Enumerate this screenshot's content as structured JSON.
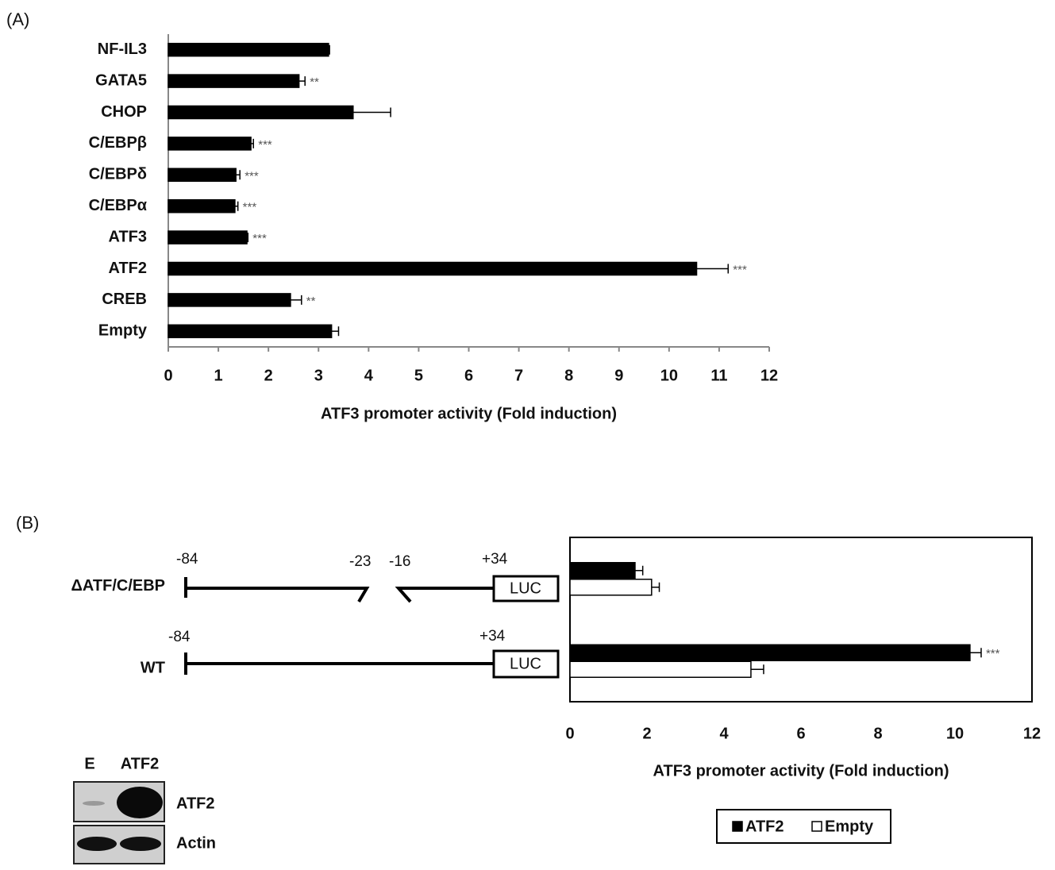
{
  "panel_labels": [
    "(A)",
    "(B)"
  ],
  "chart_data": [
    {
      "type": "bar",
      "orientation": "horizontal",
      "categories": [
        "NF-IL3",
        "GATA5",
        "CHOP",
        "C/EBPβ",
        "C/EBPδ",
        "C/EBPα",
        "ATF3",
        "ATF2",
        "CREB",
        "Empty"
      ],
      "series": [
        {
          "name": "ATF2",
          "color": "#000000",
          "values": [
            3.2,
            2.61,
            3.69,
            1.65,
            1.35,
            1.33,
            1.57,
            10.55,
            2.44,
            3.26
          ],
          "errors": [
            0.02,
            0.12,
            0.75,
            0.05,
            0.08,
            0.06,
            0.02,
            0.63,
            0.22,
            0.14
          ],
          "significance": [
            null,
            "**",
            null,
            "***",
            "***",
            "***",
            "***",
            "***",
            "**",
            null
          ]
        }
      ],
      "xlabel": "ATF3 promoter activity (Fold induction)",
      "xlim": [
        0,
        12
      ],
      "xticks": [
        0,
        1,
        2,
        3,
        4,
        5,
        6,
        7,
        8,
        9,
        10,
        11,
        12
      ],
      "frame": false,
      "legend": null
    },
    {
      "type": "bar",
      "orientation": "horizontal",
      "categories": [
        "ΔATF/C/EBP",
        "WT"
      ],
      "series": [
        {
          "name": "ATF2",
          "color": "#000000",
          "values": [
            1.69,
            10.39
          ],
          "errors": [
            0.2,
            0.29
          ],
          "significance": [
            null,
            "***"
          ]
        },
        {
          "name": "Empty",
          "color": "#ffffff",
          "values": [
            2.12,
            4.7
          ],
          "errors": [
            0.2,
            0.33
          ],
          "significance": [
            null,
            null
          ]
        }
      ],
      "xlabel": "ATF3 promoter activity (Fold induction)",
      "xlim": [
        0,
        12
      ],
      "xticks": [
        0,
        2,
        4,
        6,
        8,
        10,
        12
      ],
      "frame": true,
      "legend": "bottom"
    }
  ],
  "constructs": [
    {
      "start": "-84",
      "deletion": [
        "-23",
        "-16"
      ],
      "end": "+34",
      "reporter": "LUC"
    },
    {
      "start": "-84",
      "end": "+34",
      "reporter": "LUC"
    }
  ],
  "blot": {
    "lanes": [
      "E",
      "ATF2"
    ],
    "rows": [
      "ATF2",
      "Actin"
    ]
  }
}
